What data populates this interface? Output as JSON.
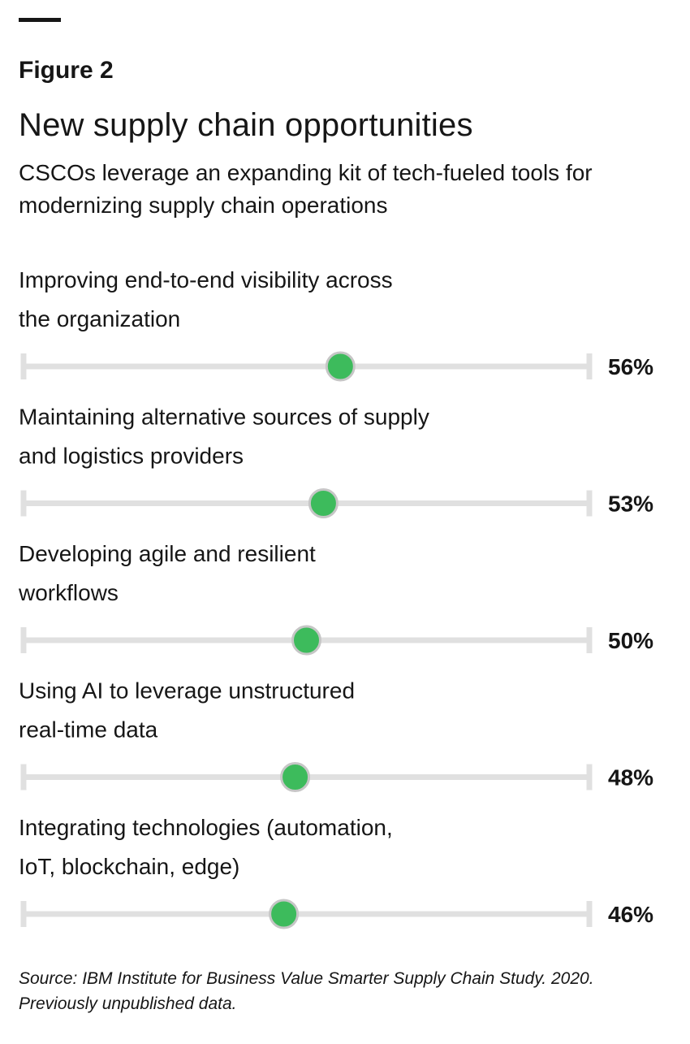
{
  "figure_label": "Figure 2",
  "title": "New supply chain opportunities",
  "subtitle": "CSCOs leverage an expanding kit of tech-fueled tools for modernizing supply chain operations",
  "source": "Source: IBM Institute for Business Value Smarter Supply Chain Study. 2020. Previously unpublished data.",
  "chart_data": {
    "type": "scatter",
    "title": "New supply chain opportunities",
    "subtitle": "CSCOs leverage an expanding kit of tech-fueled tools for modernizing supply chain operations",
    "xlim": [
      0,
      100
    ],
    "grid": false,
    "categories": [
      {
        "lines": [
          "Improving end-to-end visibility across",
          "the organization"
        ],
        "value": 56,
        "value_label": "56%"
      },
      {
        "lines": [
          "Maintaining alternative sources of supply",
          "and logistics providers"
        ],
        "value": 53,
        "value_label": "53%"
      },
      {
        "lines": [
          "Developing  agile and resilient",
          "workflows"
        ],
        "value": 50,
        "value_label": "50%"
      },
      {
        "lines": [
          "Using AI to leverage unstructured",
          "real-time data"
        ],
        "value": 48,
        "value_label": "48%"
      },
      {
        "lines": [
          "Integrating  technologies (automation,",
          "IoT, blockchain, edge)"
        ],
        "value": 46,
        "value_label": "46%"
      }
    ],
    "colors": {
      "marker": "#3dbb5c",
      "marker_stroke": "#c6c6c6",
      "track": "#e0e0e0",
      "text": "#161616"
    }
  }
}
